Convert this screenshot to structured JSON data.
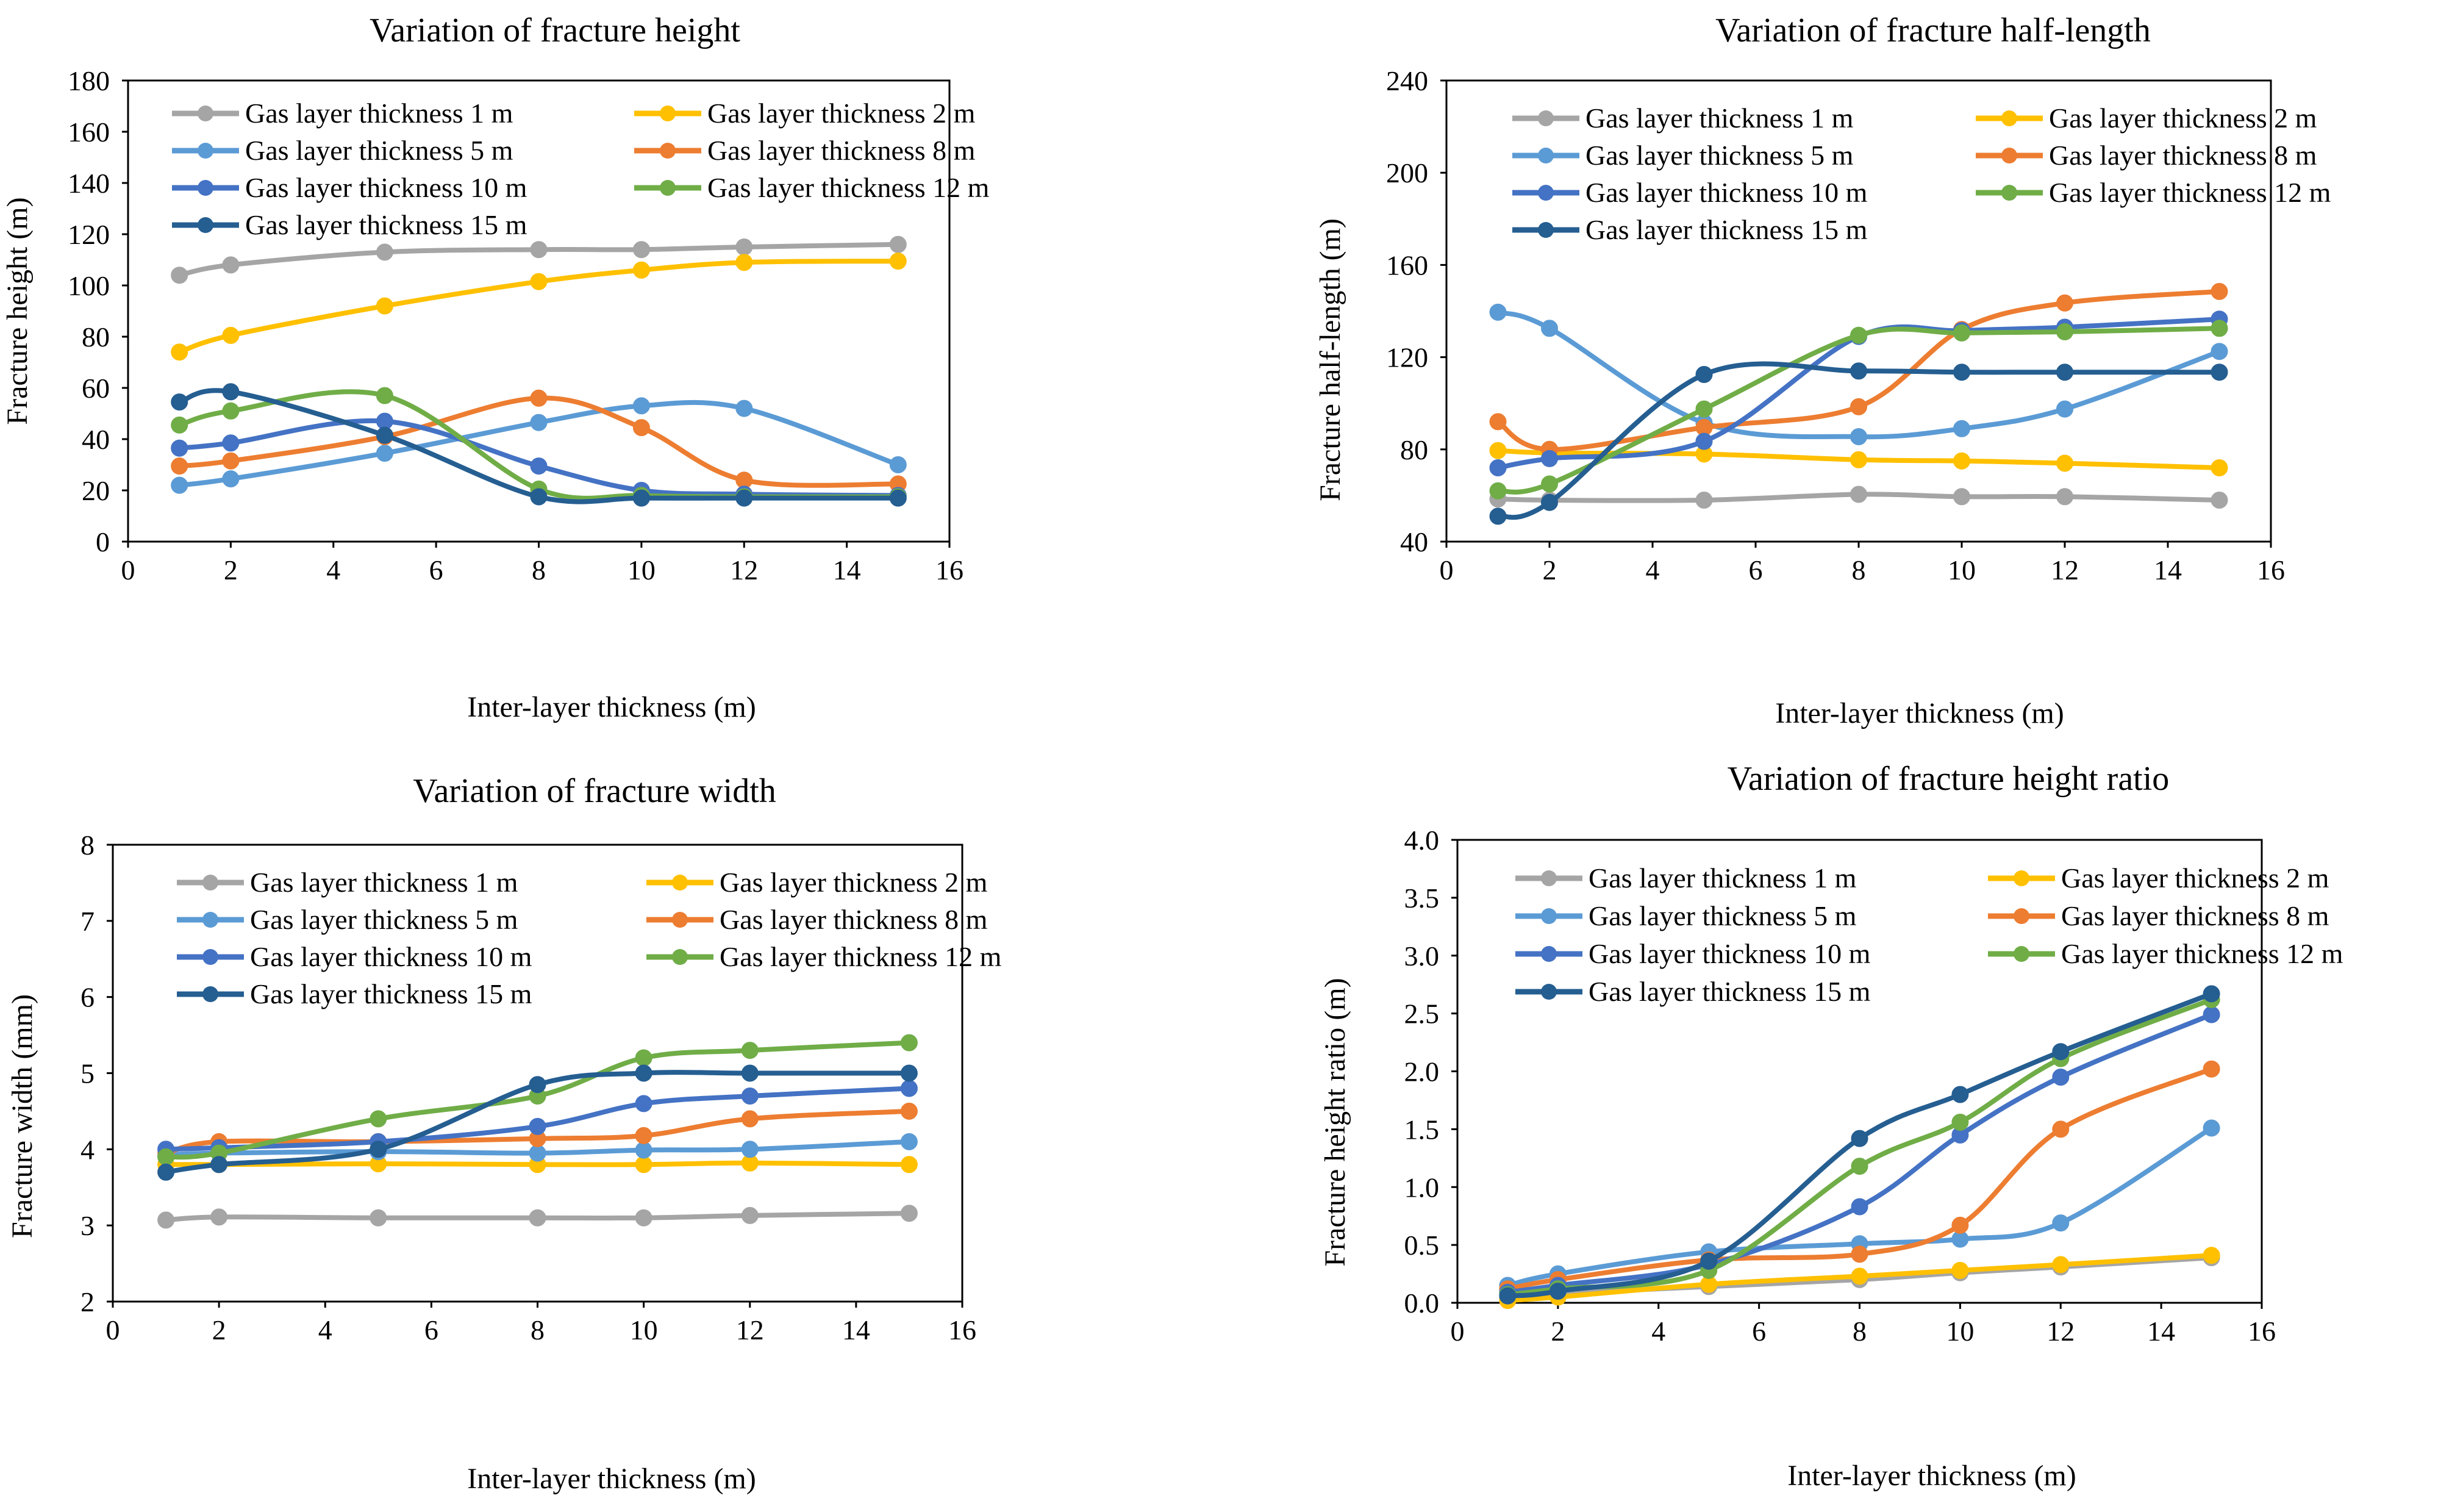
{
  "chart_data": [
    {
      "id": "height",
      "type": "line",
      "title": "Variation of fracture height",
      "xlabel": "Inter-layer thickness (m)",
      "ylabel": "Fracture height (m)",
      "xlim": [
        0,
        16
      ],
      "ylim": [
        0,
        180
      ],
      "xticks": [
        "0",
        "2",
        "4",
        "6",
        "8",
        "10",
        "12",
        "14",
        "16"
      ],
      "yticks": [
        "0",
        "20",
        "40",
        "60",
        "80",
        "100",
        "120",
        "140",
        "160",
        "180"
      ],
      "x": [
        1,
        2,
        5,
        8,
        10,
        12,
        15
      ],
      "series": [
        {
          "name": "Gas layer thickness 1 m",
          "color": "#a5a5a5",
          "values": [
            104,
            108,
            113,
            114,
            114,
            115,
            116
          ]
        },
        {
          "name": "Gas layer thickness 2 m",
          "color": "#ffc000",
          "values": [
            74,
            80.5,
            92,
            101.5,
            106,
            109,
            109.5
          ]
        },
        {
          "name": "Gas layer thickness 5 m",
          "color": "#5b9bd5",
          "values": [
            22,
            24.5,
            34.5,
            46.5,
            53,
            52,
            30
          ]
        },
        {
          "name": "Gas layer thickness 8 m",
          "color": "#ed7d31",
          "values": [
            29.5,
            31.5,
            41,
            56,
            44.5,
            24,
            22.5
          ]
        },
        {
          "name": "Gas layer thickness 10 m",
          "color": "#4472c4",
          "values": [
            36.5,
            38.5,
            47,
            29.5,
            20,
            18.5,
            18
          ]
        },
        {
          "name": "Gas layer thickness 12 m",
          "color": "#70ad47",
          "values": [
            45.5,
            51,
            57,
            20.5,
            18,
            17.5,
            17.5
          ]
        },
        {
          "name": "Gas layer thickness 15 m",
          "color": "#255e91",
          "values": [
            54.5,
            58.5,
            41.5,
            17.5,
            17,
            17,
            17
          ]
        }
      ]
    },
    {
      "id": "half",
      "type": "line",
      "title": "Variation of fracture half-length",
      "xlabel": "Inter-layer thickness (m)",
      "ylabel": "Fracture half-length (m)",
      "xlim": [
        0,
        16
      ],
      "ylim": [
        40,
        240
      ],
      "xticks": [
        "0",
        "2",
        "4",
        "6",
        "8",
        "10",
        "12",
        "14",
        "16"
      ],
      "yticks": [
        "40",
        "80",
        "120",
        "160",
        "200",
        "240"
      ],
      "x": [
        1,
        2,
        5,
        8,
        10,
        12,
        15
      ],
      "series": [
        {
          "name": "Gas layer thickness 1 m",
          "color": "#a5a5a5",
          "values": [
            58.5,
            58,
            58,
            60.5,
            59.5,
            59.5,
            58
          ]
        },
        {
          "name": "Gas layer thickness 2 m",
          "color": "#ffc000",
          "values": [
            79.5,
            78.5,
            78,
            75.5,
            75,
            74,
            72
          ]
        },
        {
          "name": "Gas layer thickness 5 m",
          "color": "#5b9bd5",
          "values": [
            139.5,
            132.5,
            91.5,
            85.5,
            89,
            97.5,
            122.5
          ]
        },
        {
          "name": "Gas layer thickness 8 m",
          "color": "#ed7d31",
          "values": [
            92,
            80,
            89.5,
            98.5,
            132,
            143.5,
            148.5
          ]
        },
        {
          "name": "Gas layer thickness 10 m",
          "color": "#4472c4",
          "values": [
            72,
            76,
            83.5,
            129,
            131.5,
            133,
            136.5
          ]
        },
        {
          "name": "Gas layer thickness 12 m",
          "color": "#70ad47",
          "values": [
            62,
            65,
            97.5,
            129.5,
            130.5,
            131,
            132.5
          ]
        },
        {
          "name": "Gas layer thickness 15 m",
          "color": "#255e91",
          "values": [
            51,
            57,
            112.5,
            114,
            113.5,
            113.5,
            113.5
          ]
        }
      ]
    },
    {
      "id": "width",
      "type": "line",
      "title": "Variation of fracture width",
      "xlabel": "Inter-layer thickness (m)",
      "ylabel": "Fracture width (mm)",
      "xlim": [
        0,
        16
      ],
      "ylim": [
        2,
        8
      ],
      "xticks": [
        "0",
        "2",
        "4",
        "6",
        "8",
        "10",
        "12",
        "14",
        "16"
      ],
      "yticks": [
        "2",
        "3",
        "4",
        "5",
        "6",
        "7",
        "8"
      ],
      "x": [
        1,
        2,
        5,
        8,
        10,
        12,
        15
      ],
      "series": [
        {
          "name": "Gas layer thickness 1 m",
          "color": "#a5a5a5",
          "values": [
            3.07,
            3.11,
            3.1,
            3.1,
            3.1,
            3.13,
            3.16
          ]
        },
        {
          "name": "Gas layer thickness 2 m",
          "color": "#ffc000",
          "values": [
            3.8,
            3.8,
            3.81,
            3.8,
            3.8,
            3.82,
            3.8
          ]
        },
        {
          "name": "Gas layer thickness 5 m",
          "color": "#5b9bd5",
          "values": [
            3.93,
            3.95,
            3.97,
            3.95,
            3.99,
            4.0,
            4.1
          ]
        },
        {
          "name": "Gas layer thickness 8 m",
          "color": "#ed7d31",
          "values": [
            3.95,
            4.1,
            4.1,
            4.14,
            4.18,
            4.4,
            4.5
          ]
        },
        {
          "name": "Gas layer thickness 10 m",
          "color": "#4472c4",
          "values": [
            4.0,
            4.02,
            4.1,
            4.3,
            4.6,
            4.7,
            4.8
          ]
        },
        {
          "name": "Gas layer thickness 12 m",
          "color": "#70ad47",
          "values": [
            3.9,
            3.95,
            4.4,
            4.7,
            5.2,
            5.3,
            5.4
          ]
        },
        {
          "name": "Gas layer thickness 15 m",
          "color": "#255e91",
          "values": [
            3.7,
            3.8,
            4.0,
            4.85,
            5.0,
            5.0,
            5.0
          ]
        }
      ]
    },
    {
      "id": "ratio",
      "type": "line",
      "title": "Variation of fracture height ratio",
      "xlabel": "Inter-layer thickness (m)",
      "ylabel": "Fracture height ratio (m)",
      "xlim": [
        0,
        16
      ],
      "ylim": [
        0,
        4
      ],
      "xticks": [
        "0",
        "2",
        "4",
        "6",
        "8",
        "10",
        "12",
        "14",
        "16"
      ],
      "yticks": [
        "0.0",
        "0.5",
        "1.0",
        "1.5",
        "2.0",
        "2.5",
        "3.0",
        "3.5",
        "4.0"
      ],
      "x": [
        1,
        2,
        5,
        8,
        10,
        12,
        15
      ],
      "series": [
        {
          "name": "Gas layer thickness 1 m",
          "color": "#a5a5a5",
          "values": [
            0.05,
            0.08,
            0.14,
            0.2,
            0.26,
            0.31,
            0.39
          ]
        },
        {
          "name": "Gas layer thickness 2 m",
          "color": "#ffc000",
          "values": [
            0.02,
            0.05,
            0.16,
            0.23,
            0.28,
            0.33,
            0.41
          ]
        },
        {
          "name": "Gas layer thickness 5 m",
          "color": "#5b9bd5",
          "values": [
            0.15,
            0.25,
            0.44,
            0.51,
            0.55,
            0.69,
            1.51
          ]
        },
        {
          "name": "Gas layer thickness 8 m",
          "color": "#ed7d31",
          "values": [
            0.12,
            0.2,
            0.37,
            0.42,
            0.67,
            1.5,
            2.02
          ]
        },
        {
          "name": "Gas layer thickness 10 m",
          "color": "#4472c4",
          "values": [
            0.09,
            0.15,
            0.33,
            0.83,
            1.45,
            1.95,
            2.49
          ]
        },
        {
          "name": "Gas layer thickness 12 m",
          "color": "#70ad47",
          "values": [
            0.07,
            0.12,
            0.28,
            1.18,
            1.56,
            2.11,
            2.62
          ]
        },
        {
          "name": "Gas layer thickness 15 m",
          "color": "#255e91",
          "values": [
            0.06,
            0.1,
            0.36,
            1.42,
            1.8,
            2.17,
            2.67
          ]
        }
      ]
    }
  ]
}
